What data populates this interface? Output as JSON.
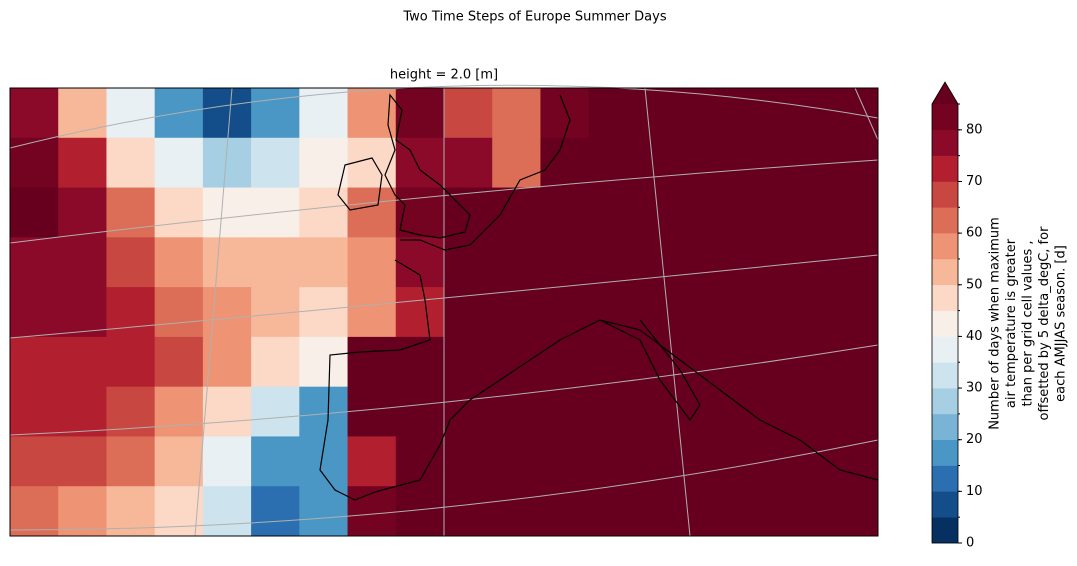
{
  "chart_data": {
    "type": "heatmap",
    "title": "Two Time Steps of Europe Summer Days",
    "subtitle": "height = 2.0 [m]",
    "values": [
      [
        75,
        50,
        35,
        15,
        5,
        15,
        35,
        55,
        80,
        65,
        62,
        80,
        88,
        88,
        88,
        88,
        88,
        88
      ],
      [
        80,
        70,
        45,
        35,
        25,
        30,
        40,
        45,
        78,
        78,
        62,
        88,
        88,
        88,
        88,
        88,
        88,
        88
      ],
      [
        85,
        75,
        60,
        48,
        40,
        42,
        45,
        60,
        80,
        88,
        88,
        88,
        88,
        88,
        88,
        88,
        88,
        88
      ],
      [
        78,
        78,
        68,
        58,
        52,
        50,
        50,
        58,
        75,
        88,
        88,
        88,
        88,
        88,
        88,
        88,
        88,
        88
      ],
      [
        75,
        75,
        70,
        62,
        55,
        50,
        48,
        55,
        72,
        88,
        88,
        88,
        88,
        88,
        88,
        88,
        88,
        88
      ],
      [
        72,
        72,
        70,
        65,
        55,
        45,
        40,
        88,
        88,
        88,
        88,
        88,
        88,
        88,
        88,
        88,
        88,
        88
      ],
      [
        70,
        70,
        65,
        58,
        45,
        30,
        15,
        88,
        88,
        88,
        88,
        88,
        88,
        88,
        88,
        88,
        88,
        88
      ],
      [
        68,
        65,
        60,
        50,
        35,
        15,
        15,
        70,
        88,
        88,
        88,
        88,
        88,
        88,
        88,
        88,
        88,
        88
      ],
      [
        60,
        55,
        50,
        45,
        30,
        10,
        15,
        80,
        88,
        88,
        88,
        88,
        88,
        88,
        88,
        88,
        88,
        88
      ]
    ],
    "colorbar": {
      "label": [
        "Number of days when maximum",
        "air temperature is greater",
        "than per grid cell values ,",
        "offsetted by 5 delta_degC, for",
        "each AMJJAS season. [d]"
      ],
      "ylim": [
        0,
        85
      ],
      "yticks": [
        0,
        10,
        20,
        30,
        40,
        50,
        60,
        70,
        80
      ],
      "levels": [
        0,
        5,
        10,
        15,
        20,
        25,
        30,
        35,
        40,
        45,
        50,
        55,
        60,
        65,
        70,
        75,
        80,
        85
      ],
      "colors": [
        "#053061",
        "#144e8a",
        "#2b6fb0",
        "#4a96c4",
        "#79b3d5",
        "#a6cfe4",
        "#cde3ee",
        "#e8f0f4",
        "#f9efe9",
        "#fbd9c6",
        "#f7b799",
        "#ee9373",
        "#dc6e57",
        "#c94741",
        "#b2202f",
        "#8b0a2a",
        "#740221"
      ],
      "extend_color": "#67001f"
    }
  }
}
